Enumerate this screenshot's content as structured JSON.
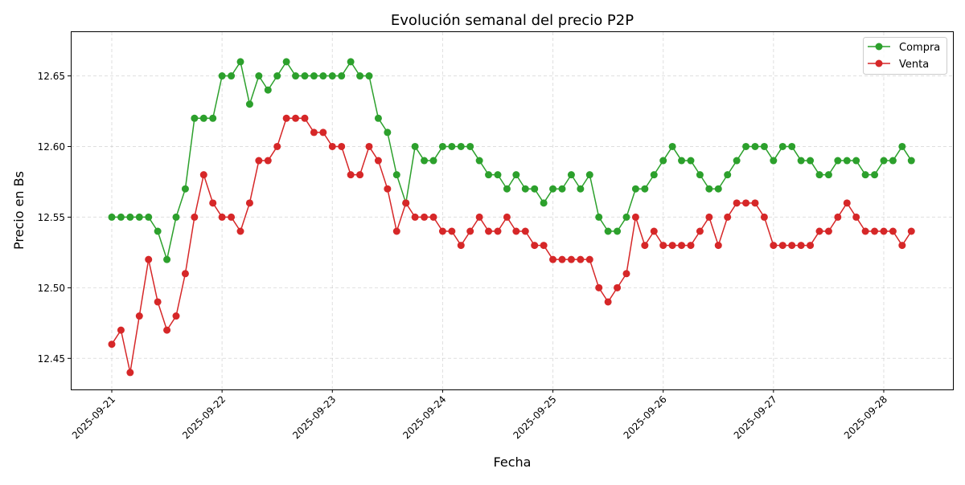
{
  "chart_data": {
    "type": "line",
    "title": "Evolución semanal del precio P2P",
    "xlabel": "Fecha",
    "ylabel": "Precio en Bs",
    "ylim": [
      12.428,
      12.681
    ],
    "yticks": [
      "12.45",
      "12.50",
      "12.55",
      "12.60",
      "12.65"
    ],
    "xticks": [
      "2025-09-21",
      "2025-09-22",
      "2025-09-23",
      "2025-09-24",
      "2025-09-25",
      "2025-09-26",
      "2025-09-27",
      "2025-09-28"
    ],
    "grid": true,
    "legend_position": "top-right",
    "markers": true,
    "x": [
      "2025-09-21 00:00",
      "2025-09-21 02:00",
      "2025-09-21 04:00",
      "2025-09-21 06:00",
      "2025-09-21 08:00",
      "2025-09-21 10:00",
      "2025-09-21 12:00",
      "2025-09-21 14:00",
      "2025-09-21 16:00",
      "2025-09-21 18:00",
      "2025-09-21 20:00",
      "2025-09-21 22:00",
      "2025-09-22 00:00",
      "2025-09-22 02:00",
      "2025-09-22 04:00",
      "2025-09-22 06:00",
      "2025-09-22 08:00",
      "2025-09-22 10:00",
      "2025-09-22 12:00",
      "2025-09-22 14:00",
      "2025-09-22 16:00",
      "2025-09-22 18:00",
      "2025-09-22 20:00",
      "2025-09-22 22:00",
      "2025-09-23 00:00",
      "2025-09-23 02:00",
      "2025-09-23 04:00",
      "2025-09-23 06:00",
      "2025-09-23 08:00",
      "2025-09-23 10:00",
      "2025-09-23 12:00",
      "2025-09-23 14:00",
      "2025-09-23 16:00",
      "2025-09-23 18:00",
      "2025-09-23 20:00",
      "2025-09-23 22:00",
      "2025-09-24 00:00",
      "2025-09-24 02:00",
      "2025-09-24 04:00",
      "2025-09-24 06:00",
      "2025-09-24 08:00",
      "2025-09-24 10:00",
      "2025-09-24 12:00",
      "2025-09-24 14:00",
      "2025-09-24 16:00",
      "2025-09-24 18:00",
      "2025-09-24 20:00",
      "2025-09-24 22:00",
      "2025-09-25 00:00",
      "2025-09-25 02:00",
      "2025-09-25 04:00",
      "2025-09-25 06:00",
      "2025-09-25 08:00",
      "2025-09-25 10:00",
      "2025-09-25 12:00",
      "2025-09-25 14:00",
      "2025-09-25 16:00",
      "2025-09-25 18:00",
      "2025-09-25 20:00",
      "2025-09-25 22:00",
      "2025-09-26 00:00",
      "2025-09-26 02:00",
      "2025-09-26 04:00",
      "2025-09-26 06:00",
      "2025-09-26 08:00",
      "2025-09-26 10:00",
      "2025-09-26 12:00",
      "2025-09-26 14:00",
      "2025-09-26 16:00",
      "2025-09-26 18:00",
      "2025-09-26 20:00",
      "2025-09-26 22:00",
      "2025-09-27 00:00",
      "2025-09-27 02:00",
      "2025-09-27 04:00",
      "2025-09-27 06:00",
      "2025-09-27 08:00",
      "2025-09-27 10:00",
      "2025-09-27 12:00",
      "2025-09-27 14:00",
      "2025-09-27 16:00",
      "2025-09-27 18:00",
      "2025-09-27 20:00",
      "2025-09-27 22:00",
      "2025-09-28 00:00",
      "2025-09-28 02:00",
      "2025-09-28 04:00",
      "2025-09-28 06:00"
    ],
    "series": [
      {
        "name": "Compra",
        "color": "#2ca02c",
        "values": [
          12.55,
          12.55,
          12.55,
          12.55,
          12.55,
          12.54,
          12.52,
          12.55,
          12.57,
          12.62,
          12.62,
          12.62,
          12.65,
          12.65,
          12.66,
          12.63,
          12.65,
          12.64,
          12.65,
          12.66,
          12.65,
          12.65,
          12.65,
          12.65,
          12.65,
          12.65,
          12.66,
          12.65,
          12.65,
          12.62,
          12.61,
          12.58,
          12.56,
          12.6,
          12.59,
          12.59,
          12.6,
          12.6,
          12.6,
          12.6,
          12.59,
          12.58,
          12.58,
          12.57,
          12.58,
          12.57,
          12.57,
          12.56,
          12.57,
          12.57,
          12.58,
          12.57,
          12.58,
          12.55,
          12.54,
          12.54,
          12.55,
          12.57,
          12.57,
          12.58,
          12.59,
          12.6,
          12.59,
          12.59,
          12.58,
          12.57,
          12.57,
          12.58,
          12.59,
          12.6,
          12.6,
          12.6,
          12.59,
          12.6,
          12.6,
          12.59,
          12.59,
          12.58,
          12.58,
          12.59,
          12.59,
          12.59,
          12.58,
          12.58,
          12.59,
          12.59,
          12.6,
          12.59
        ]
      },
      {
        "name": "Venta",
        "color": "#d62728",
        "values": [
          12.46,
          12.47,
          12.44,
          12.48,
          12.52,
          12.49,
          12.47,
          12.48,
          12.51,
          12.55,
          12.58,
          12.56,
          12.55,
          12.55,
          12.54,
          12.56,
          12.59,
          12.59,
          12.6,
          12.62,
          12.62,
          12.62,
          12.61,
          12.61,
          12.6,
          12.6,
          12.58,
          12.58,
          12.6,
          12.59,
          12.57,
          12.54,
          12.56,
          12.55,
          12.55,
          12.55,
          12.54,
          12.54,
          12.53,
          12.54,
          12.55,
          12.54,
          12.54,
          12.55,
          12.54,
          12.54,
          12.53,
          12.53,
          12.52,
          12.52,
          12.52,
          12.52,
          12.52,
          12.5,
          12.49,
          12.5,
          12.51,
          12.55,
          12.53,
          12.54,
          12.53,
          12.53,
          12.53,
          12.53,
          12.54,
          12.55,
          12.53,
          12.55,
          12.56,
          12.56,
          12.56,
          12.55,
          12.53,
          12.53,
          12.53,
          12.53,
          12.53,
          12.54,
          12.54,
          12.55,
          12.56,
          12.55,
          12.54,
          12.54,
          12.54,
          12.54,
          12.53,
          12.54
        ]
      }
    ]
  }
}
